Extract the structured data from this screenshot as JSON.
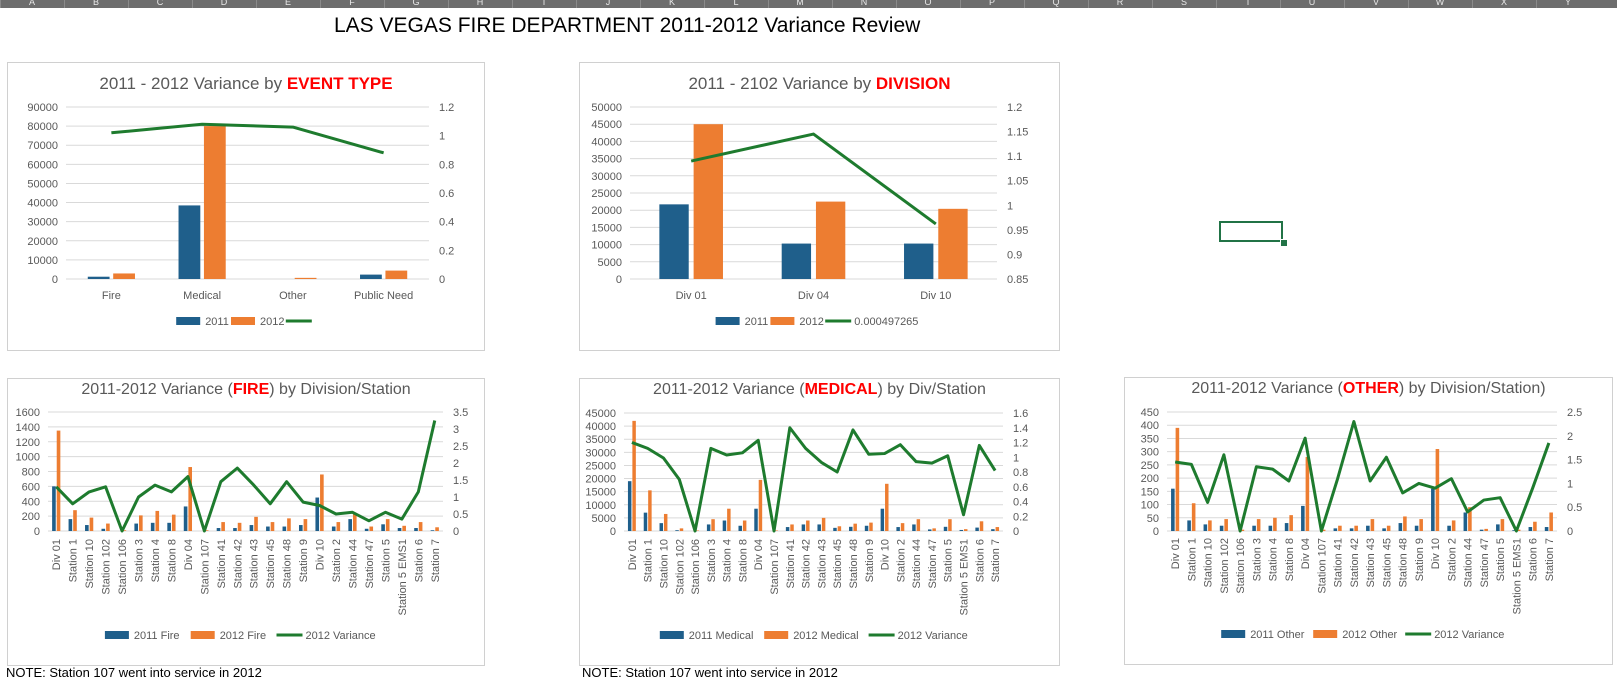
{
  "spreadsheet": {
    "columns": [
      "A",
      "B",
      "C",
      "D",
      "E",
      "F",
      "G",
      "H",
      "I",
      "J",
      "K",
      "L",
      "M",
      "N",
      "O",
      "P",
      "Q",
      "R",
      "S",
      "T",
      "U",
      "V",
      "W",
      "X",
      "Y"
    ],
    "title": "LAS VEGAS FIRE DEPARTMENT 2011-2012 Variance Review",
    "notes": [
      "NOTE: Station 107 went into service in 2012",
      "NOTE: Station 107 went into service in 2012"
    ]
  },
  "colors": {
    "s2011": "#1f5f8b",
    "s2012": "#ed7d31",
    "variance": "#1e7b2e",
    "accent": "#ff0000"
  },
  "chart_data": [
    {
      "type": "bar",
      "title_prefix": "2011 - 2012 Variance by ",
      "title_accent": "EVENT TYPE",
      "title_suffix": "",
      "categories": [
        "Fire",
        "Medical",
        "Other",
        "Public Need"
      ],
      "series": [
        {
          "name": "2011",
          "values": [
            1200,
            38500,
            0,
            2300
          ]
        },
        {
          "name": "2012",
          "values": [
            2900,
            80000,
            600,
            4400
          ]
        },
        {
          "name": "",
          "values": [
            1.02,
            1.08,
            1.06,
            0.88
          ],
          "kind": "line",
          "axis": "right"
        }
      ],
      "y_ticks": [
        "0",
        "10000",
        "20000",
        "30000",
        "40000",
        "50000",
        "60000",
        "70000",
        "80000",
        "90000"
      ],
      "ylim": [
        0,
        90000
      ],
      "y2_ticks": [
        "0",
        "0.2",
        "0.4",
        "0.6",
        "0.8",
        "1",
        "1.2"
      ],
      "y2lim": [
        0,
        1.2
      ],
      "legend": "bottom"
    },
    {
      "type": "bar",
      "title_prefix": "2011 - 2102 Variance by ",
      "title_accent": "DIVISION",
      "title_suffix": "",
      "categories": [
        "Div 01",
        "Div 04",
        "Div 10"
      ],
      "series": [
        {
          "name": "2011",
          "values": [
            21700,
            10300,
            10300
          ]
        },
        {
          "name": "2012",
          "values": [
            45000,
            22500,
            20400
          ]
        },
        {
          "name": "0.000497265",
          "values": [
            1.09,
            1.145,
            0.962
          ],
          "kind": "line",
          "axis": "right"
        }
      ],
      "y_ticks": [
        "0",
        "5000",
        "10000",
        "15000",
        "20000",
        "25000",
        "30000",
        "35000",
        "40000",
        "45000",
        "50000"
      ],
      "ylim": [
        0,
        50000
      ],
      "y2_ticks": [
        "0.85",
        "0.9",
        "0.95",
        "1",
        "1.05",
        "1.1",
        "1.15",
        "1.2"
      ],
      "y2lim": [
        0.85,
        1.2
      ],
      "legend": "bottom"
    },
    {
      "type": "bar",
      "title_prefix": "2011-2012 Variance (",
      "title_accent": "FIRE",
      "title_suffix": ") by Division/Station",
      "categories": [
        "Div 01",
        "Station 1",
        "Station 10",
        "Station 102",
        "Station 106",
        "Station 3",
        "Station 4",
        "Station 8",
        "Div 04",
        "Station 107",
        "Station 41",
        "Station 42",
        "Station 43",
        "Station 45",
        "Station 48",
        "Station 9",
        "Div 10",
        "Station 2",
        "Station 44",
        "Station 47",
        "Station 5",
        "Station 5 EMS1",
        "Station 6",
        "Station 7"
      ],
      "series": [
        {
          "name": "2011 Fire",
          "values": [
            600,
            160,
            80,
            30,
            0,
            100,
            110,
            110,
            330,
            0,
            40,
            40,
            80,
            60,
            60,
            80,
            450,
            60,
            160,
            30,
            90,
            40,
            40,
            10
          ]
        },
        {
          "name": "2012 Fire",
          "values": [
            1350,
            280,
            180,
            100,
            10,
            210,
            270,
            220,
            860,
            10,
            120,
            110,
            190,
            120,
            170,
            160,
            760,
            120,
            230,
            60,
            160,
            70,
            120,
            50
          ]
        },
        {
          "name": "2012 Variance",
          "values": [
            1.3,
            0.8,
            1.15,
            1.3,
            0.0,
            1.0,
            1.35,
            1.15,
            1.6,
            0.0,
            1.45,
            1.85,
            1.35,
            0.8,
            1.45,
            0.85,
            0.75,
            0.5,
            0.55,
            0.3,
            0.55,
            0.35,
            1.15,
            3.25
          ],
          "kind": "line",
          "axis": "right"
        }
      ],
      "y_ticks": [
        "0",
        "200",
        "400",
        "600",
        "800",
        "1000",
        "1200",
        "1400",
        "1600"
      ],
      "ylim": [
        0,
        1600
      ],
      "y2_ticks": [
        "0",
        "0.5",
        "1",
        "1.5",
        "2",
        "2.5",
        "3",
        "3.5"
      ],
      "y2lim": [
        0,
        3.5
      ],
      "legend": "bottom"
    },
    {
      "type": "bar",
      "title_prefix": "2011-2012 Variance (",
      "title_accent": "MEDICAL",
      "title_suffix": ") by Div/Station",
      "categories": [
        "Div 01",
        "Station 1",
        "Station 10",
        "Station 102",
        "Station 106",
        "Station 3",
        "Station 4",
        "Station 8",
        "Div 04",
        "Station 107",
        "Station 41",
        "Station 42",
        "Station 43",
        "Station 45",
        "Station 48",
        "Station 9",
        "Div 10",
        "Station 2",
        "Station 44",
        "Station 47",
        "Station 5",
        "Station 5 EMS1",
        "Station 6",
        "Station 7"
      ],
      "series": [
        {
          "name": "2011 Medical",
          "values": [
            19000,
            7000,
            3000,
            300,
            0,
            2500,
            4000,
            2000,
            8500,
            0,
            1500,
            2500,
            2500,
            1200,
            1600,
            2000,
            8500,
            1500,
            2500,
            600,
            1600,
            400,
            1300,
            700
          ]
        },
        {
          "name": "2012 Medical",
          "values": [
            42000,
            15500,
            6500,
            1000,
            200,
            4500,
            8500,
            4000,
            19500,
            200,
            2500,
            4000,
            5000,
            1800,
            2800,
            3200,
            18000,
            3000,
            4500,
            1000,
            4500,
            700,
            3700,
            1500
          ]
        },
        {
          "name": "2012 Variance",
          "values": [
            1.2,
            1.12,
            0.99,
            0.7,
            0.0,
            1.12,
            1.03,
            1.06,
            1.23,
            0.0,
            1.4,
            1.12,
            0.93,
            0.8,
            1.37,
            1.04,
            1.05,
            1.17,
            0.94,
            0.92,
            1.02,
            0.22,
            1.16,
            0.82
          ],
          "kind": "line",
          "axis": "right"
        }
      ],
      "y_ticks": [
        "0",
        "5000",
        "10000",
        "15000",
        "20000",
        "25000",
        "30000",
        "35000",
        "40000",
        "45000"
      ],
      "ylim": [
        0,
        45000
      ],
      "y2_ticks": [
        "0",
        "0.2",
        "0.4",
        "0.6",
        "0.8",
        "1",
        "1.2",
        "1.4",
        "1.6"
      ],
      "y2lim": [
        0,
        1.6
      ],
      "legend": "bottom"
    },
    {
      "type": "bar",
      "title_prefix": "2011-2012 Variance (",
      "title_accent": "OTHER",
      "title_suffix": ") by Division/Station)",
      "categories": [
        "Div 01",
        "Station 1",
        "Station 10",
        "Station 102",
        "Station 106",
        "Station 3",
        "Station 4",
        "Station 8",
        "Div 04",
        "Station 107",
        "Station 41",
        "Station 42",
        "Station 43",
        "Station 45",
        "Station 48",
        "Station 9",
        "Div 10",
        "Station 2",
        "Station 44",
        "Station 47",
        "Station 5",
        "Station 5 EMS1",
        "Station 6",
        "Station 7"
      ],
      "series": [
        {
          "name": "2011 Other",
          "values": [
            160,
            40,
            25,
            20,
            0,
            20,
            20,
            30,
            95,
            0,
            10,
            10,
            20,
            10,
            30,
            20,
            160,
            20,
            70,
            5,
            25,
            3,
            15,
            15
          ]
        },
        {
          "name": "2012 Other",
          "values": [
            390,
            105,
            40,
            45,
            5,
            45,
            50,
            60,
            280,
            5,
            20,
            20,
            45,
            20,
            55,
            45,
            310,
            40,
            90,
            8,
            45,
            5,
            35,
            70
          ]
        },
        {
          "name": "2012 Variance",
          "values": [
            1.45,
            1.4,
            0.6,
            1.6,
            0.0,
            1.35,
            1.3,
            1.05,
            1.95,
            0.0,
            1.1,
            2.3,
            1.05,
            1.55,
            0.8,
            1.0,
            0.9,
            1.1,
            0.4,
            0.65,
            0.7,
            0.0,
            0.9,
            1.85
          ],
          "kind": "line",
          "axis": "right"
        }
      ],
      "y_ticks": [
        "0",
        "50",
        "100",
        "150",
        "200",
        "250",
        "300",
        "350",
        "400",
        "450"
      ],
      "ylim": [
        0,
        450
      ],
      "y2_ticks": [
        "0",
        "0.5",
        "1",
        "1.5",
        "2",
        "2.5"
      ],
      "y2lim": [
        0,
        2.5
      ],
      "legend": "bottom"
    }
  ]
}
